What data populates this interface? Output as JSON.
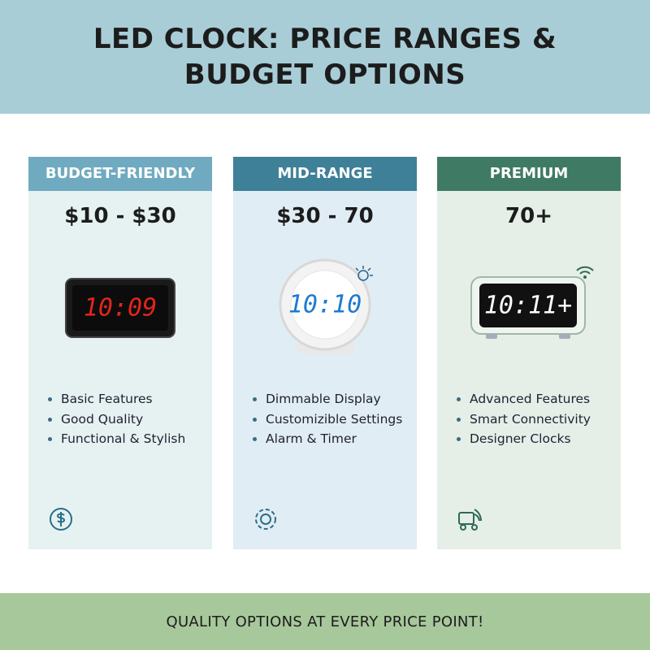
{
  "header": {
    "title": "LED CLOCK: PRICE RANGES & BUDGET OPTIONS"
  },
  "cards": [
    {
      "title": "BUDGET-FRIENDLY",
      "price": "$10 - $30",
      "display": "10:09",
      "features": [
        "Basic Features",
        "Good Quality",
        "Functional & Stylish"
      ]
    },
    {
      "title": "MID-RANGE",
      "price": "$30 - 70",
      "display": "10:10",
      "features": [
        "Dimmable Display",
        "Customizible Settings",
        "Alarm & Timer"
      ]
    },
    {
      "title": "PREMIUM",
      "price": "70+",
      "display": "10:11+",
      "features": [
        "Advanced Features",
        "Smart Connectivity",
        "Designer Clocks"
      ]
    }
  ],
  "footer": {
    "text": "QUALITY OPTIONS AT EVERY PRICE POINT!"
  }
}
